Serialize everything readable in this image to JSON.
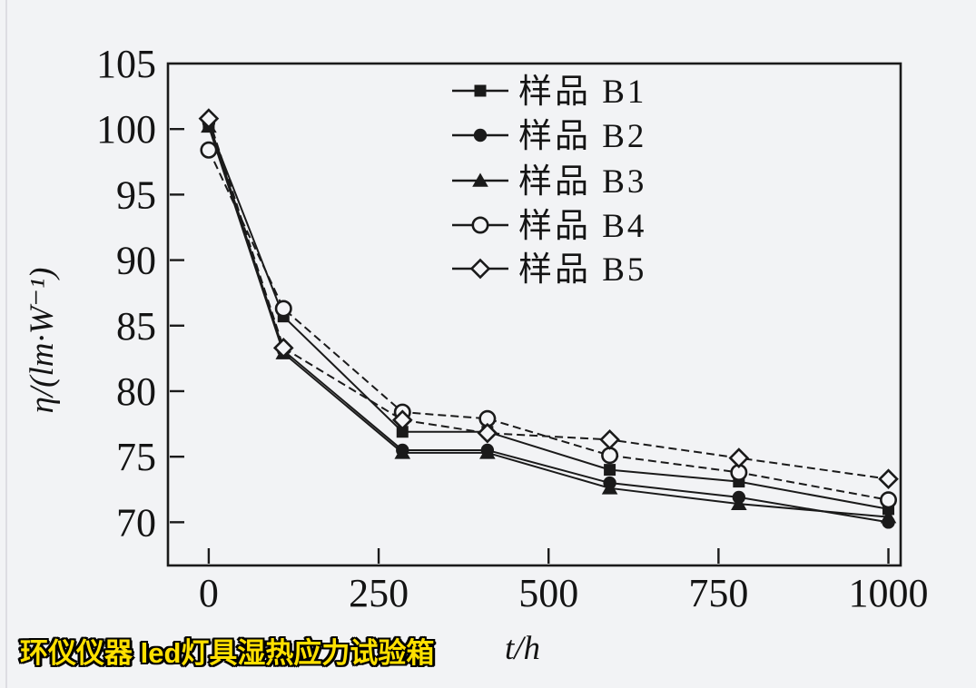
{
  "page": {
    "background_color": "#f2f3f5",
    "ink_color": "#1a1a1a"
  },
  "watermark": {
    "text": "环仪仪器 led灯具湿热应力试验箱",
    "text_color": "#ffe000",
    "outline_color": "#000000"
  },
  "chart_data": {
    "type": "line",
    "title": "",
    "xlabel": "t/h",
    "ylabel": "η/(lm·W⁻¹)",
    "xlim": [
      -60,
      1018
    ],
    "ylim": [
      66.7,
      105
    ],
    "x_ticks": [
      0,
      250,
      500,
      750,
      1000
    ],
    "y_ticks": [
      70,
      75,
      80,
      85,
      90,
      95,
      100,
      105
    ],
    "grid": false,
    "legend_position": "top-center-inside",
    "x": [
      0,
      110,
      285,
      410,
      590,
      780,
      1000
    ],
    "series": [
      {
        "name": "样品 B1",
        "marker": "square-filled",
        "line": "solid",
        "values": [
          100.3,
          85.7,
          76.9,
          76.9,
          74.0,
          73.1,
          71.0
        ]
      },
      {
        "name": "样品 B2",
        "marker": "circle-filled",
        "line": "solid",
        "values": [
          100.5,
          83.1,
          75.5,
          75.5,
          73.0,
          71.9,
          70.0
        ]
      },
      {
        "name": "样品 B3",
        "marker": "triangle-filled",
        "line": "solid",
        "values": [
          100.2,
          82.9,
          75.3,
          75.3,
          72.6,
          71.4,
          70.4
        ]
      },
      {
        "name": "样品 B4",
        "marker": "circle-open",
        "line": "dashed",
        "values": [
          98.4,
          86.3,
          78.4,
          77.9,
          75.1,
          73.8,
          71.7
        ]
      },
      {
        "name": "样品 B5",
        "marker": "diamond-open",
        "line": "dashed",
        "values": [
          100.8,
          83.3,
          77.8,
          76.8,
          76.3,
          74.9,
          73.3
        ]
      }
    ]
  }
}
